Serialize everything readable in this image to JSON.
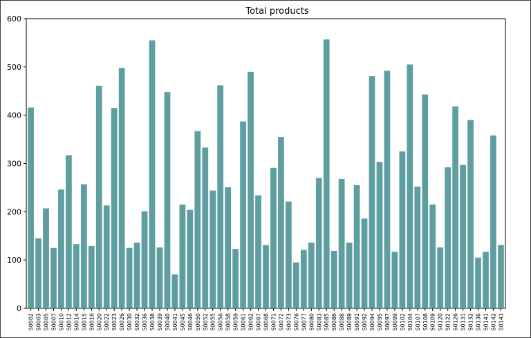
{
  "chart_data": {
    "type": "bar",
    "title": "Total products",
    "xlabel": "",
    "ylabel": "",
    "ylim": [
      0,
      600
    ],
    "yticks": [
      0,
      100,
      200,
      300,
      400,
      500,
      600
    ],
    "grid": false,
    "bar_color": "#5f9ea0",
    "categories": [
      "S0002",
      "S0003",
      "S0005",
      "S0007",
      "S0010",
      "S0012",
      "S0014",
      "S0015",
      "S0016",
      "S0020",
      "S0022",
      "S0023",
      "S0026",
      "S0030",
      "S0032",
      "S0036",
      "S0038",
      "S0039",
      "S0040",
      "S0041",
      "S0045",
      "S0046",
      "S0050",
      "S0052",
      "S0055",
      "S0056",
      "S0058",
      "S0059",
      "S0061",
      "S0062",
      "S0067",
      "S0068",
      "S0071",
      "S0072",
      "S0073",
      "S0076",
      "S0077",
      "S0080",
      "S0083",
      "S0085",
      "S0086",
      "S0088",
      "S0089",
      "S0091",
      "S0092",
      "S0094",
      "S0095",
      "S0097",
      "S0099",
      "S0102",
      "S0104",
      "S0107",
      "S0108",
      "S0109",
      "S0120",
      "S0122",
      "S0126",
      "S0131",
      "S0132",
      "S0136",
      "S0141",
      "S0142",
      "S0143"
    ],
    "values": [
      416,
      145,
      207,
      125,
      246,
      317,
      133,
      257,
      129,
      461,
      213,
      415,
      498,
      125,
      136,
      201,
      555,
      126,
      448,
      70,
      215,
      204,
      367,
      333,
      244,
      462,
      251,
      123,
      387,
      490,
      234,
      131,
      291,
      355,
      221,
      95,
      121,
      136,
      270,
      557,
      119,
      268,
      136,
      255,
      186,
      481,
      303,
      492,
      117,
      325,
      505,
      252,
      443,
      215,
      126,
      292,
      418,
      297,
      390,
      105,
      117,
      358,
      131
    ]
  }
}
